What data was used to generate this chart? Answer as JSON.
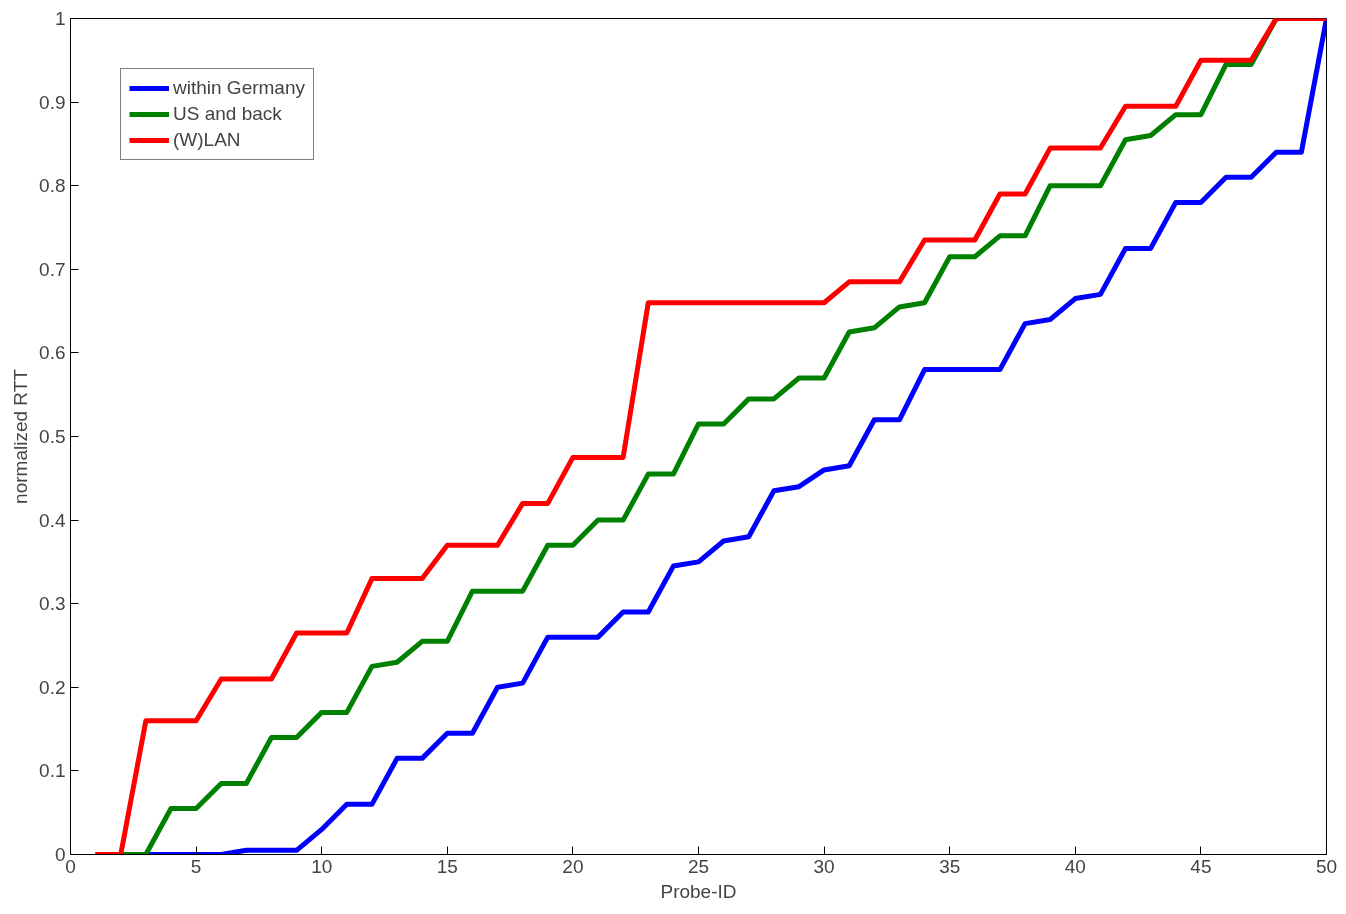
{
  "chart_data": {
    "type": "line",
    "xlabel": "Probe-ID",
    "ylabel": "normalized RTT",
    "x": [
      1,
      2,
      3,
      4,
      5,
      6,
      7,
      8,
      9,
      10,
      11,
      12,
      13,
      14,
      15,
      16,
      17,
      18,
      19,
      20,
      21,
      22,
      23,
      24,
      25,
      26,
      27,
      28,
      29,
      30,
      31,
      32,
      33,
      34,
      35,
      36,
      37,
      38,
      39,
      40,
      41,
      42,
      43,
      44,
      45,
      46,
      47,
      48,
      49,
      50
    ],
    "series": [
      {
        "name": "within Germany",
        "color": "#0000ff",
        "values": [
          0,
          0,
          0,
          0,
          0,
          0,
          0.005,
          0.005,
          0.005,
          0.03,
          0.06,
          0.06,
          0.115,
          0.115,
          0.145,
          0.145,
          0.2,
          0.205,
          0.26,
          0.26,
          0.26,
          0.29,
          0.29,
          0.345,
          0.35,
          0.375,
          0.38,
          0.435,
          0.44,
          0.46,
          0.465,
          0.52,
          0.52,
          0.58,
          0.58,
          0.58,
          0.58,
          0.635,
          0.64,
          0.665,
          0.67,
          0.725,
          0.725,
          0.78,
          0.78,
          0.81,
          0.81,
          0.84,
          0.84,
          1
        ]
      },
      {
        "name": "US and back",
        "color": "#008000",
        "values": [
          0,
          0,
          0,
          0.055,
          0.055,
          0.085,
          0.085,
          0.14,
          0.14,
          0.17,
          0.17,
          0.225,
          0.23,
          0.255,
          0.255,
          0.315,
          0.315,
          0.315,
          0.37,
          0.37,
          0.4,
          0.4,
          0.455,
          0.455,
          0.515,
          0.515,
          0.545,
          0.545,
          0.57,
          0.57,
          0.625,
          0.63,
          0.655,
          0.66,
          0.715,
          0.715,
          0.74,
          0.74,
          0.8,
          0.8,
          0.8,
          0.855,
          0.86,
          0.885,
          0.885,
          0.945,
          0.945,
          1,
          null,
          null
        ]
      },
      {
        "name": "(W)LAN",
        "color": "#ff0000",
        "values": [
          0,
          0,
          0.16,
          0.16,
          0.16,
          0.21,
          0.21,
          0.21,
          0.265,
          0.265,
          0.265,
          0.33,
          0.33,
          0.33,
          0.37,
          0.37,
          0.37,
          0.42,
          0.42,
          0.475,
          0.475,
          0.475,
          0.66,
          0.66,
          0.66,
          0.66,
          0.66,
          0.66,
          0.66,
          0.66,
          0.685,
          0.685,
          0.685,
          0.735,
          0.735,
          0.735,
          0.79,
          0.79,
          0.845,
          0.845,
          0.845,
          0.895,
          0.895,
          0.895,
          0.95,
          0.95,
          0.95,
          1,
          1,
          1
        ]
      }
    ],
    "xlim": [
      0,
      50
    ],
    "ylim": [
      0,
      1
    ],
    "xticks": [
      0,
      5,
      10,
      15,
      20,
      25,
      30,
      35,
      40,
      45,
      50
    ],
    "yticks": [
      0,
      0.1,
      0.2,
      0.3,
      0.4,
      0.5,
      0.6,
      0.7,
      0.8,
      0.9,
      1
    ],
    "grid": false,
    "legend": "top left",
    "line_style": "solid",
    "marker": "none"
  }
}
